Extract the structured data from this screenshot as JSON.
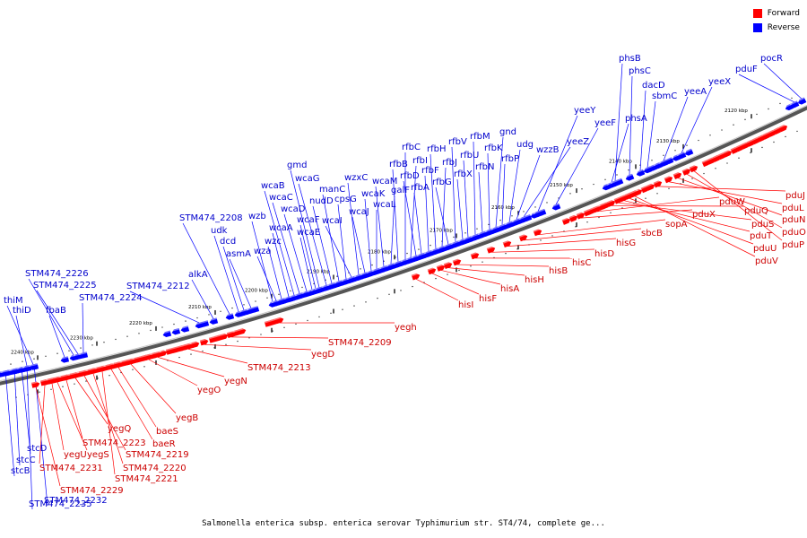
{
  "caption": "Salmonella enterica subsp. enterica serovar Typhimurium str. ST4/74, complete ge...",
  "legend": {
    "forward_label": "Forward",
    "reverse_label": "Reverse",
    "forward_color": "#ff0000",
    "reverse_color": "#0000ff"
  },
  "axis_ticks": [
    "2120 kbp",
    "2130 kbp",
    "2140 kbp",
    "2150 kbp",
    "2160 kbp",
    "2170 kbp",
    "2180 kbp",
    "2190 kbp",
    "2200 kbp",
    "2210 kbp",
    "2220 kbp",
    "2230 kbp",
    "2240 kbp"
  ],
  "reverse_genes": [
    "stcB",
    "stcC",
    "stcD",
    "STM474_2235",
    "STM474_2232",
    "thiD",
    "thiM",
    "fbaB",
    "STM474_2226",
    "STM474_2225",
    "STM474_2224",
    "STM474_2212",
    "alkA",
    "STM474_2208",
    "udk",
    "dcd",
    "asmA",
    "wzb",
    "wza",
    "wzc",
    "wcaA",
    "wcaB",
    "wcaC",
    "wcaD",
    "wcaE",
    "wcaF",
    "gmd",
    "wcaG",
    "nudD",
    "manC",
    "cpsG",
    "wcaI",
    "wzxC",
    "wcaJ",
    "wcaK",
    "wcaL",
    "wcaM",
    "galF",
    "rfbB",
    "rfbC",
    "rfbI",
    "rfbD",
    "rfbA",
    "rfbF",
    "rfbH",
    "rfbJ",
    "rfbG",
    "rfbV",
    "rfbX",
    "rfbU",
    "rfbM",
    "rfbN",
    "rfbK",
    "gnd",
    "rfbP",
    "udg",
    "wzzB",
    "yeeZ",
    "yeeY",
    "yeeF",
    "phsA",
    "phsB",
    "phsC",
    "dacD",
    "sbmC",
    "yeeA",
    "yeeX",
    "pduF",
    "pocR"
  ],
  "forward_genes": [
    "STM474_2229",
    "STM474_2231",
    "yegU",
    "yegS",
    "STM474_2223",
    "yegQ",
    "STM474_2219",
    "STM474_2220",
    "STM474_2221",
    "baeR",
    "baeS",
    "yegB",
    "yegO",
    "yegN",
    "STM474_2213",
    "yegD",
    "STM474_2209",
    "yegh",
    "hisI",
    "hisF",
    "hisA",
    "hisH",
    "hisB",
    "hisC",
    "hisD",
    "hisG",
    "sbcB",
    "sopA",
    "pduX",
    "pduW",
    "pduQ",
    "pduS",
    "pduT",
    "pduU",
    "pduV",
    "pduJ",
    "pduL",
    "pduN",
    "pduO",
    "pduP"
  ]
}
